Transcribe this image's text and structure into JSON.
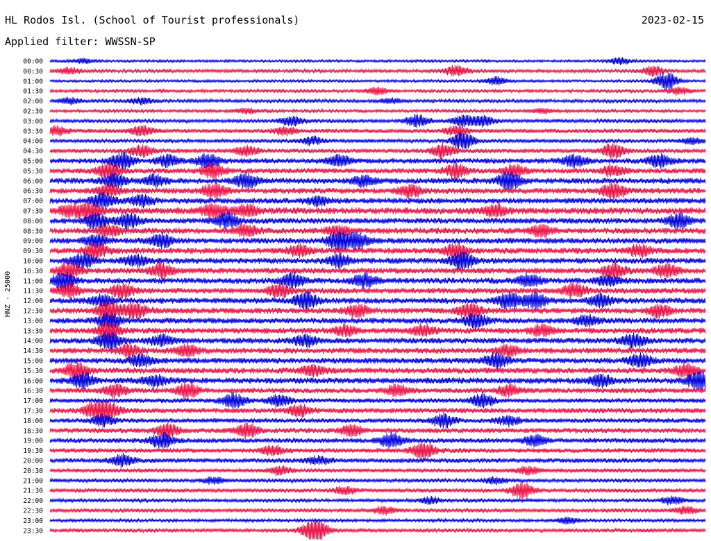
{
  "header": {
    "station": "HL Rodos Isl. (School of Tourist professionals)",
    "date": "2023-02-15",
    "filter": "Applied filter: WWSSN-SP"
  },
  "chart_data": {
    "type": "line",
    "title": "HL Rodos Isl. (School of Tourist professionals)",
    "ylabel": "HNZ - 25000",
    "colors": [
      "#0000dd",
      "#ee1144"
    ],
    "rows": [
      {
        "label": "00:00",
        "amp": 1.5,
        "bursts": [
          [
            0.05,
            3
          ],
          [
            0.87,
            4
          ]
        ]
      },
      {
        "label": "00:30",
        "amp": 2.0,
        "bursts": [
          [
            0.03,
            4
          ],
          [
            0.62,
            7
          ],
          [
            0.92,
            6
          ]
        ]
      },
      {
        "label": "01:00",
        "amp": 1.5,
        "bursts": [
          [
            0.68,
            5
          ],
          [
            0.94,
            12
          ]
        ]
      },
      {
        "label": "01:30",
        "amp": 1.8,
        "bursts": [
          [
            0.5,
            5
          ],
          [
            0.96,
            5
          ]
        ]
      },
      {
        "label": "02:00",
        "amp": 2.0,
        "bursts": [
          [
            0.03,
            4
          ],
          [
            0.14,
            4
          ],
          [
            0.52,
            3
          ]
        ]
      },
      {
        "label": "02:30",
        "amp": 1.8,
        "bursts": [
          [
            0.3,
            3
          ],
          [
            0.75,
            3
          ]
        ]
      },
      {
        "label": "03:00",
        "amp": 2.2,
        "bursts": [
          [
            0.37,
            6
          ],
          [
            0.56,
            8
          ],
          [
            0.63,
            7
          ],
          [
            0.66,
            6
          ]
        ]
      },
      {
        "label": "03:30",
        "amp": 2.5,
        "bursts": [
          [
            0.01,
            6
          ],
          [
            0.14,
            6
          ],
          [
            0.36,
            5
          ],
          [
            0.62,
            6
          ]
        ]
      },
      {
        "label": "04:00",
        "amp": 2.2,
        "bursts": [
          [
            0.4,
            5
          ],
          [
            0.63,
            11
          ],
          [
            0.98,
            4
          ]
        ]
      },
      {
        "label": "04:30",
        "amp": 2.6,
        "bursts": [
          [
            0.14,
            7
          ],
          [
            0.3,
            6
          ],
          [
            0.6,
            9
          ],
          [
            0.86,
            10
          ]
        ]
      },
      {
        "label": "05:00",
        "amp": 3.2,
        "bursts": [
          [
            0.11,
            11
          ],
          [
            0.18,
            7
          ],
          [
            0.24,
            9
          ],
          [
            0.44,
            7
          ],
          [
            0.8,
            8
          ],
          [
            0.93,
            8
          ]
        ]
      },
      {
        "label": "05:30",
        "amp": 3.2,
        "bursts": [
          [
            0.09,
            10
          ],
          [
            0.25,
            9
          ],
          [
            0.62,
            9
          ],
          [
            0.71,
            7
          ],
          [
            0.86,
            7
          ]
        ]
      },
      {
        "label": "06:00",
        "amp": 3.5,
        "bursts": [
          [
            0.1,
            9
          ],
          [
            0.16,
            7
          ],
          [
            0.3,
            9
          ],
          [
            0.48,
            7
          ],
          [
            0.7,
            12
          ]
        ]
      },
      {
        "label": "06:30",
        "amp": 3.5,
        "bursts": [
          [
            0.09,
            8
          ],
          [
            0.25,
            9
          ],
          [
            0.55,
            8
          ],
          [
            0.86,
            11
          ]
        ]
      },
      {
        "label": "07:00",
        "amp": 3.5,
        "bursts": [
          [
            0.08,
            10
          ],
          [
            0.14,
            7
          ],
          [
            0.41,
            6
          ]
        ]
      },
      {
        "label": "07:30",
        "amp": 4.0,
        "bursts": [
          [
            0.03,
            7
          ],
          [
            0.06,
            10
          ],
          [
            0.25,
            9
          ],
          [
            0.3,
            7
          ],
          [
            0.68,
            7
          ]
        ]
      },
      {
        "label": "08:00",
        "amp": 3.5,
        "bursts": [
          [
            0.07,
            10
          ],
          [
            0.12,
            9
          ],
          [
            0.27,
            10
          ],
          [
            0.96,
            9
          ]
        ]
      },
      {
        "label": "08:30",
        "amp": 3.6,
        "bursts": [
          [
            0.09,
            7
          ],
          [
            0.3,
            8
          ],
          [
            0.44,
            7
          ],
          [
            0.75,
            7
          ]
        ]
      },
      {
        "label": "09:00",
        "amp": 3.5,
        "bursts": [
          [
            0.07,
            7
          ],
          [
            0.17,
            9
          ],
          [
            0.44,
            12
          ],
          [
            0.47,
            10
          ]
        ]
      },
      {
        "label": "09:30",
        "amp": 3.6,
        "bursts": [
          [
            0.07,
            10
          ],
          [
            0.38,
            7
          ],
          [
            0.62,
            9
          ],
          [
            0.9,
            7
          ]
        ]
      },
      {
        "label": "10:00",
        "amp": 3.5,
        "bursts": [
          [
            0.05,
            9
          ],
          [
            0.13,
            7
          ],
          [
            0.44,
            8
          ],
          [
            0.63,
            12
          ]
        ]
      },
      {
        "label": "10:30",
        "amp": 3.6,
        "bursts": [
          [
            0.03,
            10
          ],
          [
            0.17,
            9
          ],
          [
            0.86,
            9
          ],
          [
            0.94,
            8
          ]
        ]
      },
      {
        "label": "11:00",
        "amp": 3.5,
        "bursts": [
          [
            0.02,
            11
          ],
          [
            0.37,
            10
          ],
          [
            0.48,
            9
          ],
          [
            0.73,
            8
          ],
          [
            0.85,
            7
          ]
        ]
      },
      {
        "label": "11:30",
        "amp": 3.5,
        "bursts": [
          [
            0.03,
            9
          ],
          [
            0.11,
            9
          ],
          [
            0.35,
            8
          ],
          [
            0.8,
            8
          ]
        ]
      },
      {
        "label": "12:00",
        "amp": 3.5,
        "bursts": [
          [
            0.08,
            7
          ],
          [
            0.39,
            11
          ],
          [
            0.7,
            11
          ],
          [
            0.74,
            10
          ],
          [
            0.84,
            8
          ]
        ]
      },
      {
        "label": "12:30",
        "amp": 3.6,
        "bursts": [
          [
            0.09,
            12
          ],
          [
            0.13,
            11
          ],
          [
            0.47,
            8
          ],
          [
            0.64,
            9
          ],
          [
            0.93,
            8
          ]
        ]
      },
      {
        "label": "13:00",
        "amp": 3.5,
        "bursts": [
          [
            0.09,
            9
          ],
          [
            0.65,
            9
          ],
          [
            0.82,
            7
          ]
        ]
      },
      {
        "label": "13:30",
        "amp": 3.5,
        "bursts": [
          [
            0.09,
            12
          ],
          [
            0.45,
            7
          ],
          [
            0.57,
            7
          ],
          [
            0.75,
            7
          ]
        ]
      },
      {
        "label": "14:00",
        "amp": 3.5,
        "bursts": [
          [
            0.09,
            11
          ],
          [
            0.17,
            7
          ],
          [
            0.39,
            7
          ],
          [
            0.89,
            9
          ]
        ]
      },
      {
        "label": "14:30",
        "amp": 3.5,
        "bursts": [
          [
            0.12,
            7
          ],
          [
            0.21,
            8
          ],
          [
            0.7,
            7
          ]
        ]
      },
      {
        "label": "15:00",
        "amp": 3.5,
        "bursts": [
          [
            0.14,
            8
          ],
          [
            0.68,
            10
          ],
          [
            0.9,
            9
          ]
        ]
      },
      {
        "label": "15:30",
        "amp": 3.6,
        "bursts": [
          [
            0.04,
            11
          ],
          [
            0.4,
            7
          ],
          [
            0.97,
            8
          ]
        ]
      },
      {
        "label": "16:00",
        "amp": 3.6,
        "bursts": [
          [
            0.05,
            10
          ],
          [
            0.16,
            7
          ],
          [
            0.84,
            7
          ],
          [
            0.99,
            12
          ]
        ]
      },
      {
        "label": "16:30",
        "amp": 3.2,
        "bursts": [
          [
            0.1,
            8
          ],
          [
            0.21,
            9
          ],
          [
            0.53,
            7
          ],
          [
            0.7,
            7
          ]
        ]
      },
      {
        "label": "17:00",
        "amp": 2.8,
        "bursts": [
          [
            0.28,
            10
          ],
          [
            0.35,
            8
          ],
          [
            0.66,
            9
          ]
        ]
      },
      {
        "label": "17:30",
        "amp": 3.2,
        "bursts": [
          [
            0.07,
            11
          ],
          [
            0.09,
            9
          ],
          [
            0.38,
            7
          ]
        ]
      },
      {
        "label": "18:00",
        "amp": 2.8,
        "bursts": [
          [
            0.08,
            7
          ],
          [
            0.6,
            9
          ],
          [
            0.7,
            6
          ]
        ]
      },
      {
        "label": "18:30",
        "amp": 3.0,
        "bursts": [
          [
            0.18,
            9
          ],
          [
            0.3,
            9
          ],
          [
            0.46,
            7
          ]
        ]
      },
      {
        "label": "19:00",
        "amp": 3.0,
        "bursts": [
          [
            0.17,
            9
          ],
          [
            0.52,
            10
          ],
          [
            0.74,
            7
          ]
        ]
      },
      {
        "label": "19:30",
        "amp": 2.8,
        "bursts": [
          [
            0.57,
            11
          ],
          [
            0.34,
            6
          ]
        ]
      },
      {
        "label": "20:00",
        "amp": 2.8,
        "bursts": [
          [
            0.11,
            8
          ],
          [
            0.41,
            5
          ]
        ]
      },
      {
        "label": "20:30",
        "amp": 2.4,
        "bursts": [
          [
            0.35,
            5
          ],
          [
            0.73,
            5
          ]
        ]
      },
      {
        "label": "21:00",
        "amp": 2.2,
        "bursts": [
          [
            0.25,
            4
          ],
          [
            0.68,
            4
          ]
        ]
      },
      {
        "label": "21:30",
        "amp": 2.4,
        "bursts": [
          [
            0.72,
            10
          ],
          [
            0.45,
            5
          ]
        ]
      },
      {
        "label": "22:00",
        "amp": 2.0,
        "bursts": [
          [
            0.58,
            4
          ],
          [
            0.95,
            5
          ]
        ]
      },
      {
        "label": "22:30",
        "amp": 2.2,
        "bursts": [
          [
            0.51,
            5
          ],
          [
            0.97,
            5
          ]
        ]
      },
      {
        "label": "23:00",
        "amp": 1.8,
        "bursts": [
          [
            0.79,
            4
          ]
        ]
      },
      {
        "label": "23:30",
        "amp": 2.2,
        "bursts": [
          [
            0.4,
            10
          ],
          [
            0.41,
            8
          ]
        ]
      }
    ]
  }
}
